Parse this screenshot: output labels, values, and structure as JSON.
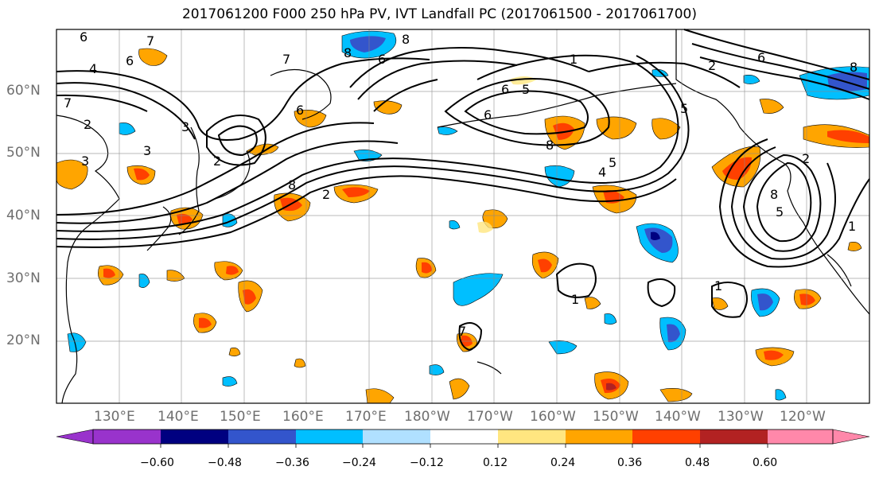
{
  "title": "2017061200 F000 250 hPa PV, IVT Landfall PC (2017061500 - 2017061700)",
  "lat_labels": [
    "60°N",
    "50°N",
    "40°N",
    "30°N",
    "20°N"
  ],
  "lon_labels": [
    "130°E",
    "140°E",
    "150°E",
    "160°E",
    "170°E",
    "180°W",
    "170°W",
    "160°W",
    "150°W",
    "140°W",
    "130°W",
    "120°W"
  ],
  "colorbar": {
    "ticks": [
      "−0.60",
      "−0.48",
      "−0.36",
      "−0.24",
      "−0.12",
      "0.12",
      "0.24",
      "0.36",
      "0.48",
      "0.60"
    ],
    "colors": [
      "#9933cc",
      "#000080",
      "#3355cc",
      "#00bfff",
      "#b0e0ff",
      "#ffffff",
      "#ffe680",
      "#ffa500",
      "#ff4000",
      "#b22222",
      "#ff88aa"
    ]
  },
  "contour_labels": [
    "6",
    "7",
    "6",
    "4",
    "7",
    "2",
    "3",
    "3",
    "2",
    "3",
    "7",
    "8",
    "6",
    "8",
    "6",
    "8",
    "2",
    "1",
    "6",
    "5",
    "6",
    "8",
    "4",
    "5",
    "2",
    "2",
    "6",
    "8",
    "5",
    "1",
    "1",
    "1",
    "5",
    "8",
    "7"
  ]
}
